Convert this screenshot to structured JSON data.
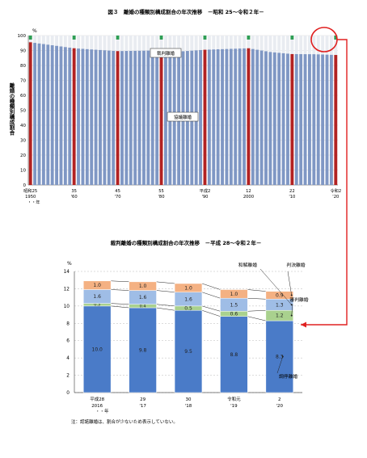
{
  "chart_data": [
    {
      "type": "bar",
      "title": "図３　離婚の種類別構成割合の年次推移　－昭和 25～令和２年－",
      "ylabel": "離婚の種類別構成割合",
      "y_unit": "%",
      "ylim": [
        0,
        100
      ],
      "yticks": [
        "0",
        "10",
        "20",
        "30",
        "40",
        "50",
        "60",
        "70",
        "80",
        "90",
        "100"
      ],
      "x_tick_labels": [
        {
          "year": 1950,
          "l1": "昭和25",
          "l2": "1950",
          "l3": "・・年"
        },
        {
          "year": 1960,
          "l1": "35",
          "l2": "'60",
          "l3": ""
        },
        {
          "year": 1970,
          "l1": "45",
          "l2": "'70",
          "l3": ""
        },
        {
          "year": 1980,
          "l1": "55",
          "l2": "'80",
          "l3": ""
        },
        {
          "year": 1990,
          "l1": "平成2",
          "l2": "'90",
          "l3": ""
        },
        {
          "year": 2000,
          "l1": "12",
          "l2": "2000",
          "l3": ""
        },
        {
          "year": 2010,
          "l1": "22",
          "l2": "'10",
          "l3": ""
        },
        {
          "year": 2020,
          "l1": "令和2",
          "l2": "'20",
          "l3": ""
        }
      ],
      "x_range": [
        1950,
        2020
      ],
      "series": [
        {
          "name": "協議離婚",
          "color": "#7f97c4",
          "keypoints": [
            [
              1950,
              95.5
            ],
            [
              1960,
              91.5
            ],
            [
              1965,
              90.5
            ],
            [
              1970,
              89.6
            ],
            [
              1980,
              90.1
            ],
            [
              1985,
              89.5
            ],
            [
              1990,
              90.5
            ],
            [
              2000,
              91.5
            ],
            [
              2005,
              89.0
            ],
            [
              2010,
              87.6
            ],
            [
              2015,
              87.5
            ],
            [
              2020,
              87.0
            ]
          ]
        },
        {
          "name": "裁判離婚",
          "color": "#e9ecf1"
        }
      ],
      "highlight_years": [
        1950,
        1960,
        1970,
        1980,
        1990,
        2000,
        2010,
        2020
      ],
      "highlight_color": "#b22222",
      "top_marker_color": "#2e9e55",
      "annotations": [
        "裁判離婚",
        "協議離婚"
      ]
    },
    {
      "type": "bar",
      "stacked": true,
      "title": "裁判離婚の種類別構成割合の年次推移　－平成 28～令和２年－",
      "y_unit": "%",
      "ylim": [
        0,
        14
      ],
      "yticks": [
        "0",
        "2",
        "4",
        "6",
        "8",
        "10",
        "12",
        "14"
      ],
      "categories": [
        {
          "l1": "平成28",
          "l2": "2016",
          "l3": "・・年"
        },
        {
          "l1": "29",
          "l2": "'17",
          "l3": ""
        },
        {
          "l1": "30",
          "l2": "'18",
          "l3": ""
        },
        {
          "l1": "令和元",
          "l2": "'19",
          "l3": ""
        },
        {
          "l1": "2",
          "l2": "'20",
          "l3": ""
        }
      ],
      "series": [
        {
          "name": "調停離婚",
          "color": "#4a7bc8",
          "values": [
            10.0,
            9.8,
            9.5,
            8.8,
            8.3
          ],
          "labels": [
            "10.0",
            "9.8",
            "9.5",
            "8.8",
            "8.3"
          ]
        },
        {
          "name": "審判離婚",
          "color": "#a9d18e",
          "values": [
            0.3,
            0.4,
            0.5,
            0.6,
            1.2
          ],
          "labels": [
            "0.3",
            "0.4",
            "0.5",
            "0.6",
            "1.2"
          ]
        },
        {
          "name": "和解離婚",
          "color": "#9fbde6",
          "values": [
            1.6,
            1.6,
            1.6,
            1.5,
            1.3
          ],
          "labels": [
            "1.6",
            "1.6",
            "1.6",
            "1.5",
            "1.3"
          ]
        },
        {
          "name": "判決離婚",
          "color": "#f4b183",
          "values": [
            1.0,
            1.0,
            1.0,
            1.0,
            0.9
          ],
          "labels": [
            "1.0",
            "1.0",
            "1.0",
            "1.0",
            "0.9"
          ]
        }
      ],
      "note": "注：認諾離婚は、割合が少ないため表示していない。"
    }
  ]
}
